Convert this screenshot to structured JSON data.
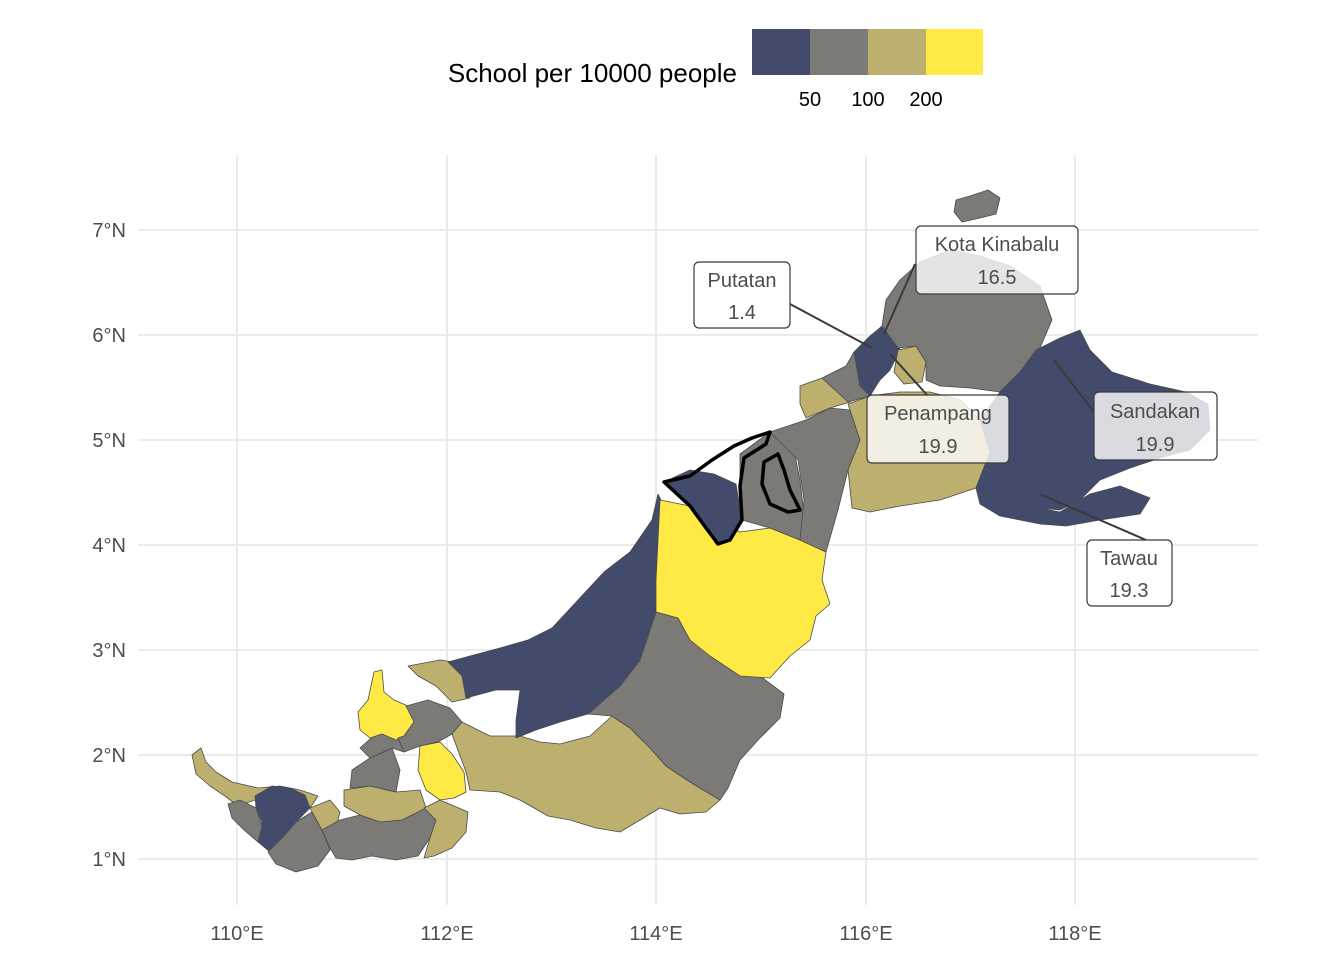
{
  "legend": {
    "title": "School per 10000 people",
    "colors": [
      "#424B6B",
      "#7B7A77",
      "#BDB06F",
      "#FFE945"
    ],
    "ticks": [
      "50",
      "100",
      "200"
    ]
  },
  "axes": {
    "x_ticks": [
      "110°E",
      "112°E",
      "114°E",
      "116°E",
      "118°E"
    ],
    "y_ticks": [
      "7°N",
      "6°N",
      "5°N",
      "4°N",
      "3°N",
      "2°N",
      "1°N"
    ],
    "grid": true
  },
  "colors": {
    "low": "#424B6B",
    "mid": "#7B7A77",
    "high": "#BDB06F",
    "top": "#FFE945",
    "grid": "#EBEBEB"
  },
  "callouts": [
    {
      "name": "Kota Kinabalu",
      "value": "16.5"
    },
    {
      "name": "Putatan",
      "value": "1.4"
    },
    {
      "name": "Penampang",
      "value": "19.9"
    },
    {
      "name": "Sandakan",
      "value": "19.9"
    },
    {
      "name": "Tawau",
      "value": "19.3"
    }
  ]
}
